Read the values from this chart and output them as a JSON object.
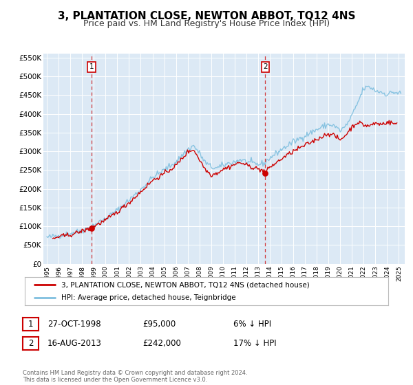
{
  "title": "3, PLANTATION CLOSE, NEWTON ABBOT, TQ12 4NS",
  "subtitle": "Price paid vs. HM Land Registry's House Price Index (HPI)",
  "title_fontsize": 11,
  "subtitle_fontsize": 9,
  "bg_color": "#ffffff",
  "plot_bg_color": "#dce9f5",
  "grid_color": "#ffffff",
  "sale1_date_num": 1998.82,
  "sale1_price": 95000,
  "sale1_label": "1",
  "sale2_date_num": 2013.62,
  "sale2_price": 242000,
  "sale2_label": "2",
  "hpi_color": "#7fbfdf",
  "price_color": "#cc0000",
  "xmin": 1994.7,
  "xmax": 2025.5,
  "ymin": 0,
  "ymax": 560000,
  "yticks": [
    0,
    50000,
    100000,
    150000,
    200000,
    250000,
    300000,
    350000,
    400000,
    450000,
    500000,
    550000
  ],
  "ytick_labels": [
    "£0",
    "£50K",
    "£100K",
    "£150K",
    "£200K",
    "£250K",
    "£300K",
    "£350K",
    "£400K",
    "£450K",
    "£500K",
    "£550K"
  ],
  "xticks": [
    1995,
    1996,
    1997,
    1998,
    1999,
    2000,
    2001,
    2002,
    2003,
    2004,
    2005,
    2006,
    2007,
    2008,
    2009,
    2010,
    2011,
    2012,
    2013,
    2014,
    2015,
    2016,
    2017,
    2018,
    2019,
    2020,
    2021,
    2022,
    2023,
    2024,
    2025
  ],
  "legend_label_price": "3, PLANTATION CLOSE, NEWTON ABBOT, TQ12 4NS (detached house)",
  "legend_label_hpi": "HPI: Average price, detached house, Teignbridge",
  "annotation1_date": "27-OCT-1998",
  "annotation1_price": "£95,000",
  "annotation1_hpi": "6% ↓ HPI",
  "annotation2_date": "16-AUG-2013",
  "annotation2_price": "£242,000",
  "annotation2_hpi": "17% ↓ HPI",
  "footer": "Contains HM Land Registry data © Crown copyright and database right 2024.\nThis data is licensed under the Open Government Licence v3.0."
}
